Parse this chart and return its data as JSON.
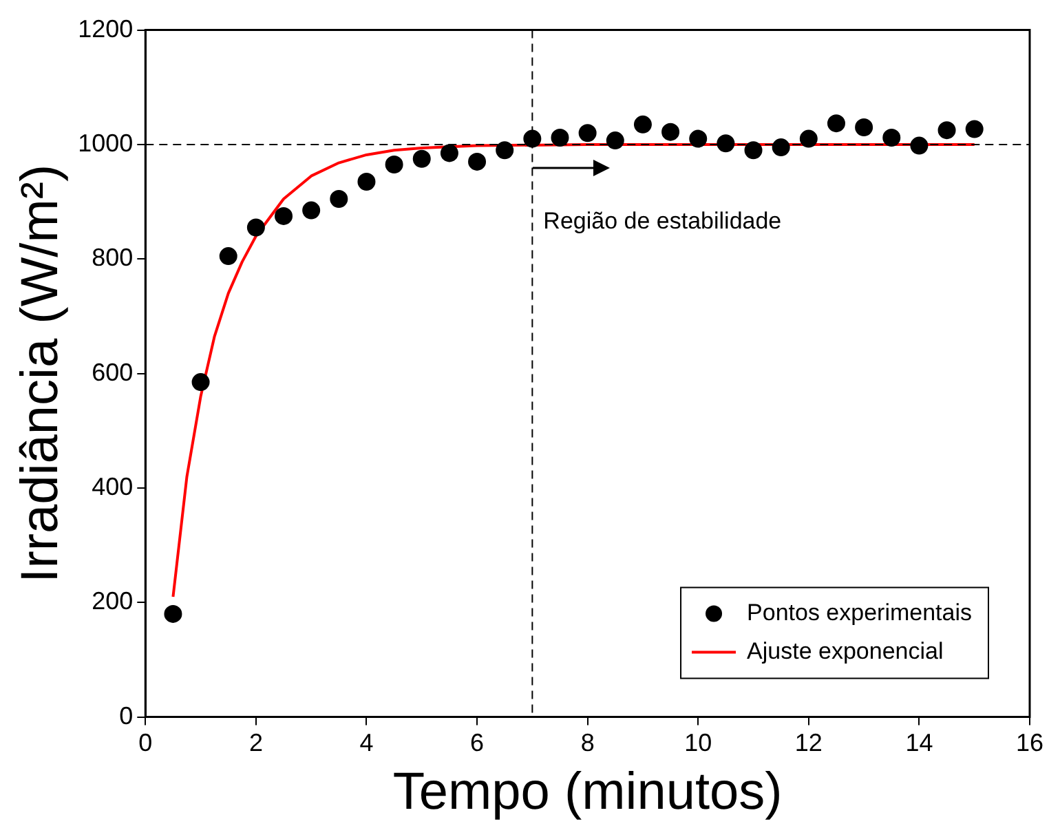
{
  "chart_data": {
    "type": "scatter",
    "xlabel": "Tempo (minutos)",
    "ylabel": "Irradiância (W/m²)",
    "xlim": [
      0,
      16
    ],
    "xticks": [
      0,
      2,
      4,
      6,
      8,
      10,
      12,
      14,
      16
    ],
    "ylim": [
      0,
      1200
    ],
    "yticks": [
      0,
      200,
      400,
      600,
      800,
      1000,
      1200
    ],
    "grid": false,
    "legend": "bottom right",
    "marker": "circle",
    "series": [
      {
        "name": "Pontos experimentais",
        "type": "scatter",
        "color": "#000000",
        "x": [
          0.5,
          1,
          1.5,
          2,
          2.5,
          3,
          3.5,
          4,
          4.5,
          5,
          5.5,
          6,
          6.5,
          7,
          7.5,
          8,
          8.5,
          9,
          9.5,
          10,
          10.5,
          11,
          11.5,
          12,
          12.5,
          13,
          13.5,
          14,
          14.5,
          15
        ],
        "values": [
          180,
          585,
          805,
          855,
          875,
          885,
          905,
          935,
          965,
          975,
          985,
          970,
          990,
          1010,
          1012,
          1020,
          1007,
          1035,
          1022,
          1010,
          1002,
          990,
          995,
          1010,
          1037,
          1030,
          1012,
          998,
          1025,
          1027
        ]
      },
      {
        "name": "Ajuste exponencial",
        "type": "line",
        "color": "#ff0000",
        "marker": "none",
        "line_style": "solid",
        "x": [
          0.5,
          0.75,
          1,
          1.25,
          1.5,
          1.75,
          2,
          2.5,
          3,
          3.5,
          4,
          4.5,
          5,
          6,
          8,
          12,
          15
        ],
        "values": [
          210,
          420,
          560,
          665,
          740,
          795,
          840,
          905,
          945,
          968,
          982,
          990,
          994,
          998,
          1000,
          1000,
          1000
        ]
      }
    ],
    "ref_lines": [
      {
        "axis": "y",
        "value": 1000,
        "color": "#000000",
        "line_style": "dashed"
      },
      {
        "axis": "x",
        "value": 7,
        "color": "#000000",
        "line_style": "dashed"
      }
    ],
    "annotations": [
      "Região de estabilidade"
    ]
  }
}
